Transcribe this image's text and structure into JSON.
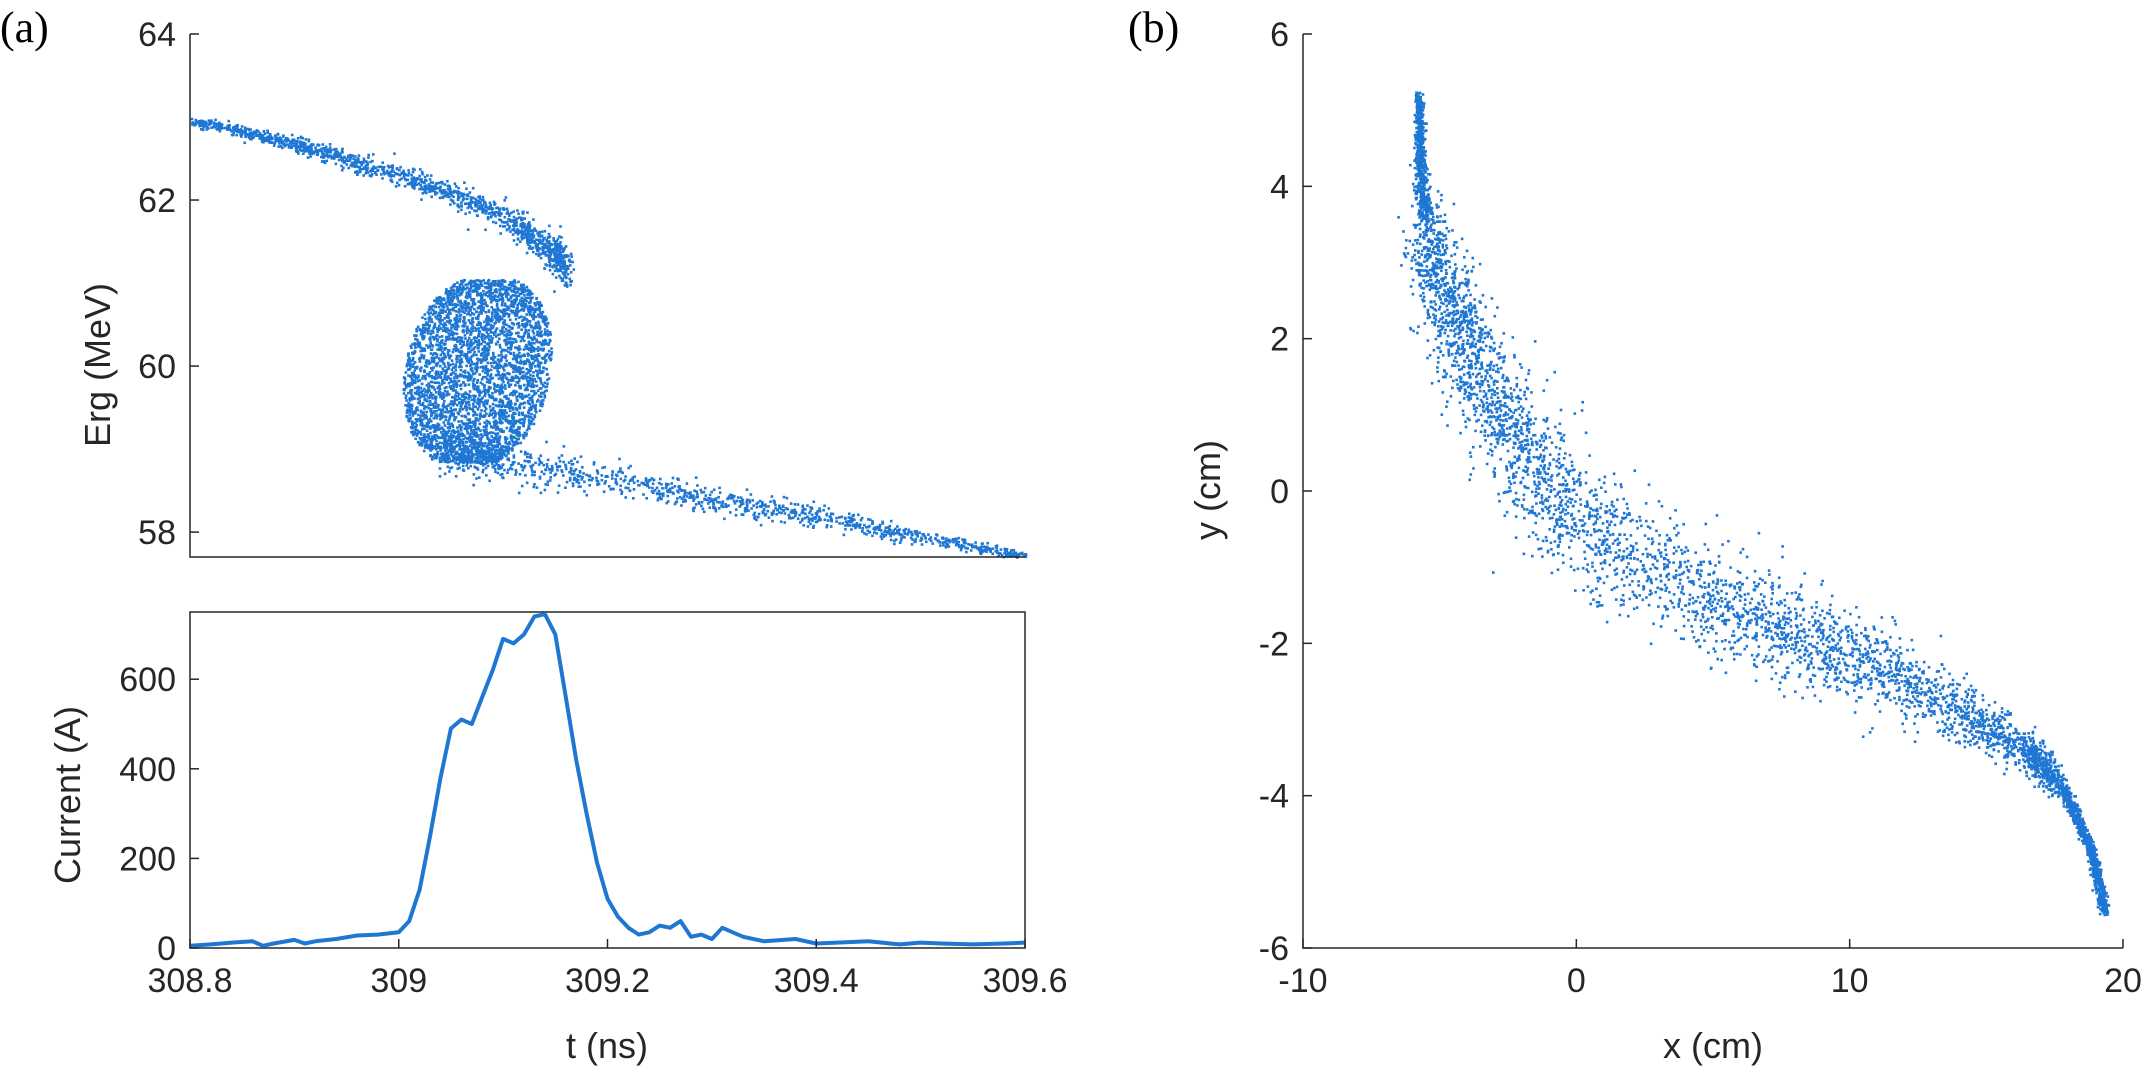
{
  "chart_data": [
    {
      "id": "a-top",
      "panel_label": "(a)",
      "type": "scatter",
      "xlabel": "",
      "ylabel": "Erg (MeV)",
      "xlim": [
        308.8,
        309.6
      ],
      "ylim": [
        57.7,
        64
      ],
      "xticks": [],
      "yticks": [
        58,
        60,
        62,
        64
      ],
      "ytick_labels": [
        "58",
        "60",
        "62",
        "64"
      ],
      "color": "#1f77d4",
      "grid": false,
      "curve": [
        {
          "t": 308.8,
          "e": 62.95
        },
        {
          "t": 308.85,
          "e": 62.85
        },
        {
          "t": 308.9,
          "e": 62.68
        },
        {
          "t": 308.95,
          "e": 62.5
        },
        {
          "t": 309.0,
          "e": 62.3
        },
        {
          "t": 309.05,
          "e": 62.1
        },
        {
          "t": 309.1,
          "e": 61.8
        },
        {
          "t": 309.13,
          "e": 61.55
        },
        {
          "t": 309.15,
          "e": 61.35
        },
        {
          "t": 309.16,
          "e": 61.15
        }
      ],
      "lower_branch": [
        {
          "t": 309.04,
          "e": 58.95
        },
        {
          "t": 309.1,
          "e": 58.85
        },
        {
          "t": 309.2,
          "e": 58.65
        },
        {
          "t": 309.3,
          "e": 58.4
        },
        {
          "t": 309.4,
          "e": 58.2
        },
        {
          "t": 309.5,
          "e": 57.95
        },
        {
          "t": 309.6,
          "e": 57.72
        }
      ],
      "blob": {
        "t_min": 309.0,
        "t_max": 309.13,
        "e_min": 58.85,
        "e_max": 61.05
      }
    },
    {
      "id": "a-bottom",
      "type": "line",
      "xlabel": "t (ns)",
      "ylabel": "Current (A)",
      "xlim": [
        308.8,
        309.6
      ],
      "ylim": [
        0,
        750
      ],
      "xticks": [
        308.8,
        309,
        309.2,
        309.4,
        309.6
      ],
      "xtick_labels": [
        "308.8",
        "309",
        "309.2",
        "309.4",
        "309.6"
      ],
      "yticks": [
        0,
        200,
        400,
        600
      ],
      "ytick_labels": [
        "0",
        "200",
        "400",
        "600"
      ],
      "color": "#1f77d4",
      "grid": false,
      "x": [
        308.8,
        308.82,
        308.84,
        308.86,
        308.87,
        308.88,
        308.9,
        308.91,
        308.92,
        308.94,
        308.96,
        308.98,
        309.0,
        309.01,
        309.02,
        309.03,
        309.04,
        309.05,
        309.06,
        309.065,
        309.07,
        309.08,
        309.09,
        309.1,
        309.11,
        309.12,
        309.13,
        309.14,
        309.15,
        309.16,
        309.17,
        309.18,
        309.19,
        309.2,
        309.21,
        309.22,
        309.23,
        309.24,
        309.25,
        309.26,
        309.27,
        309.28,
        309.29,
        309.3,
        309.31,
        309.32,
        309.33,
        309.35,
        309.38,
        309.4,
        309.42,
        309.45,
        309.48,
        309.5,
        309.52,
        309.55,
        309.58,
        309.6
      ],
      "y": [
        5,
        8,
        12,
        15,
        5,
        10,
        18,
        10,
        15,
        20,
        28,
        30,
        35,
        60,
        130,
        250,
        380,
        490,
        510,
        505,
        500,
        560,
        620,
        690,
        680,
        700,
        740,
        745,
        700,
        560,
        420,
        300,
        190,
        110,
        70,
        45,
        30,
        35,
        50,
        45,
        60,
        25,
        30,
        20,
        45,
        35,
        25,
        15,
        20,
        10,
        12,
        15,
        8,
        12,
        10,
        8,
        10,
        12
      ]
    },
    {
      "id": "b",
      "panel_label": "(b)",
      "type": "scatter",
      "xlabel": "x (cm)",
      "ylabel": "y (cm)",
      "xlim": [
        -10,
        20
      ],
      "ylim": [
        -6,
        6
      ],
      "xticks": [
        -10,
        0,
        10,
        20
      ],
      "xtick_labels": [
        "-10",
        "0",
        "10",
        "20"
      ],
      "yticks": [
        -6,
        -4,
        -2,
        0,
        2,
        4,
        6
      ],
      "ytick_labels": [
        "-6",
        "-4",
        "-2",
        "0",
        "2",
        "4",
        "6"
      ],
      "color": "#1f77d4",
      "grid": false,
      "curve": [
        {
          "x": -5.8,
          "y": 5.2
        },
        {
          "x": -5.7,
          "y": 4.0
        },
        {
          "x": -5.2,
          "y": 3.0
        },
        {
          "x": -4.2,
          "y": 2.0
        },
        {
          "x": -2.8,
          "y": 1.0
        },
        {
          "x": -1.0,
          "y": 0.0
        },
        {
          "x": 1.5,
          "y": -0.8
        },
        {
          "x": 5.0,
          "y": -1.4
        },
        {
          "x": 8.0,
          "y": -1.9
        },
        {
          "x": 11.0,
          "y": -2.3
        },
        {
          "x": 14.0,
          "y": -2.9
        },
        {
          "x": 16.5,
          "y": -3.4
        },
        {
          "x": 17.8,
          "y": -3.9
        },
        {
          "x": 18.8,
          "y": -4.7
        },
        {
          "x": 19.3,
          "y": -5.5
        }
      ]
    }
  ]
}
